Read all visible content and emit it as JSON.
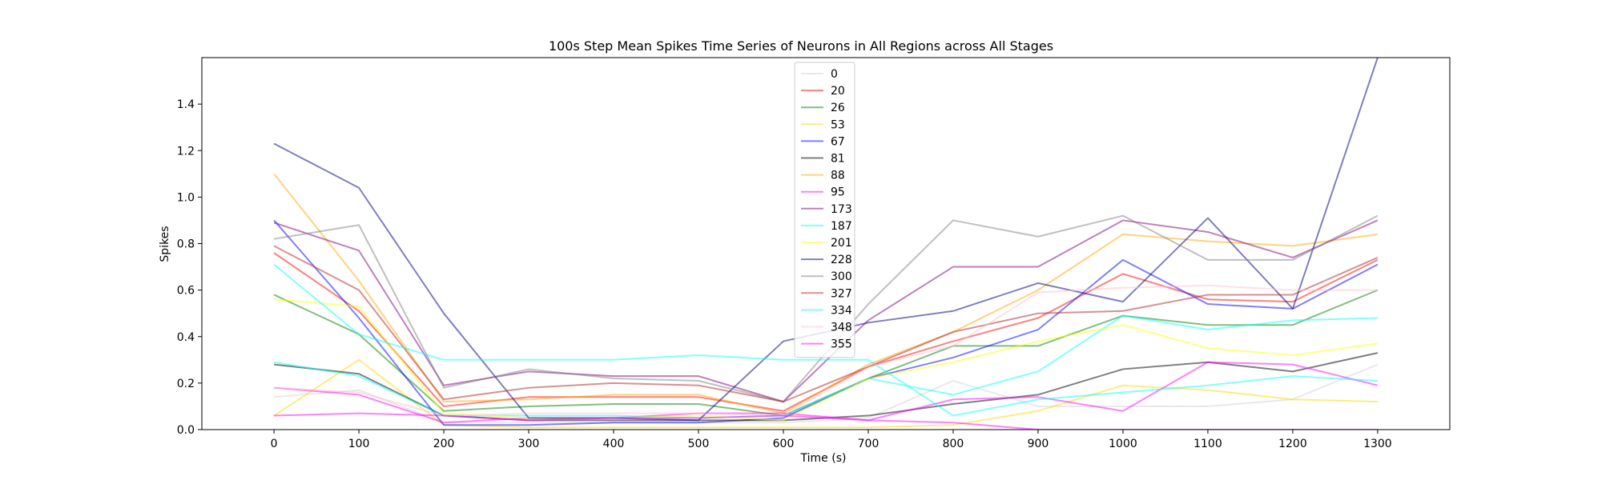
{
  "chart_data": {
    "type": "line",
    "title": "100s Step Mean Spikes Time Series of Neurons in All Regions across All Stages",
    "xlabel": "Time (s)",
    "ylabel": "Spikes",
    "xlim": [
      -85,
      1385
    ],
    "ylim": [
      0,
      1.6
    ],
    "x": [
      0,
      100,
      200,
      300,
      400,
      500,
      600,
      700,
      800,
      900,
      1000,
      1100,
      1200,
      1300
    ],
    "xticks": [
      "0",
      "100",
      "200",
      "300",
      "400",
      "500",
      "600",
      "700",
      "800",
      "900",
      "1000",
      "1100",
      "1200",
      "1300"
    ],
    "yticks": [
      "0.0",
      "0.2",
      "0.4",
      "0.6",
      "0.8",
      "1.0",
      "1.2",
      "1.4"
    ],
    "ytick_values": [
      0,
      0.2,
      0.4,
      0.6,
      0.8,
      1.0,
      1.2,
      1.4
    ],
    "grid": false,
    "legend_placement": "upper center",
    "series": [
      {
        "name": "0",
        "color": "#d3d3d3",
        "values": [
          0.14,
          0.17,
          0.03,
          0.03,
          0.03,
          0.03,
          0.03,
          0.05,
          0.21,
          0.1,
          0.1,
          0.1,
          0.13,
          0.28
        ]
      },
      {
        "name": "20",
        "color": "#ff0000",
        "values": [
          0.76,
          0.51,
          0.1,
          0.14,
          0.14,
          0.14,
          0.08,
          0.27,
          0.38,
          0.48,
          0.67,
          0.56,
          0.55,
          0.73
        ]
      },
      {
        "name": "26",
        "color": "#008000",
        "values": [
          0.58,
          0.41,
          0.08,
          0.1,
          0.11,
          0.11,
          0.06,
          0.22,
          0.36,
          0.36,
          0.49,
          0.45,
          0.45,
          0.6
        ]
      },
      {
        "name": "53",
        "color": "#ffd700",
        "values": [
          0.06,
          0.3,
          0.02,
          0.01,
          0.01,
          0.01,
          0.01,
          0.01,
          0.02,
          0.08,
          0.19,
          0.17,
          0.13,
          0.12
        ]
      },
      {
        "name": "67",
        "color": "#0000ff",
        "values": [
          0.9,
          0.48,
          0.02,
          0.02,
          0.03,
          0.03,
          0.05,
          0.22,
          0.31,
          0.43,
          0.73,
          0.54,
          0.52,
          0.71
        ]
      },
      {
        "name": "81",
        "color": "#000000",
        "values": [
          0.28,
          0.24,
          0.06,
          0.04,
          0.04,
          0.04,
          0.04,
          0.06,
          0.11,
          0.15,
          0.26,
          0.29,
          0.25,
          0.33
        ]
      },
      {
        "name": "88",
        "color": "#ffa500",
        "values": [
          1.1,
          0.64,
          0.12,
          0.13,
          0.15,
          0.15,
          0.07,
          0.28,
          0.42,
          0.6,
          0.84,
          0.81,
          0.79,
          0.84
        ]
      },
      {
        "name": "95",
        "color": "#ff00ff",
        "values": [
          0.18,
          0.15,
          0.03,
          0.05,
          0.05,
          0.07,
          0.07,
          0.04,
          0.13,
          0.14,
          0.08,
          0.29,
          0.28,
          0.19
        ]
      },
      {
        "name": "173",
        "color": "#800080",
        "values": [
          0.89,
          0.77,
          0.19,
          0.25,
          0.23,
          0.23,
          0.12,
          0.47,
          0.7,
          0.7,
          0.9,
          0.85,
          0.74,
          0.9
        ]
      },
      {
        "name": "187",
        "color": "#00ffff",
        "values": [
          0.29,
          0.23,
          0.06,
          0.06,
          0.06,
          0.05,
          0.06,
          0.22,
          0.15,
          0.25,
          0.49,
          0.43,
          0.47,
          0.48
        ]
      },
      {
        "name": "201",
        "color": "#ffff00",
        "values": [
          0.56,
          0.53,
          0.07,
          0.05,
          0.05,
          0.06,
          0.04,
          0.22,
          0.29,
          0.38,
          0.45,
          0.35,
          0.32,
          0.37
        ]
      },
      {
        "name": "228",
        "color": "#000080",
        "values": [
          1.23,
          1.04,
          0.5,
          0.05,
          0.05,
          0.04,
          0.38,
          0.46,
          0.51,
          0.63,
          0.55,
          0.91,
          0.52,
          1.6
        ]
      },
      {
        "name": "300",
        "color": "#808080",
        "values": [
          0.82,
          0.88,
          0.18,
          0.26,
          0.22,
          0.21,
          0.12,
          0.54,
          0.9,
          0.83,
          0.92,
          0.73,
          0.73,
          0.92
        ]
      },
      {
        "name": "327",
        "color": "#b22222",
        "values": [
          0.79,
          0.6,
          0.13,
          0.18,
          0.2,
          0.19,
          0.12,
          0.27,
          0.42,
          0.5,
          0.51,
          0.58,
          0.58,
          0.74
        ]
      },
      {
        "name": "334",
        "color": "#00ffff",
        "values": [
          0.71,
          0.41,
          0.3,
          0.3,
          0.3,
          0.32,
          0.3,
          0.3,
          0.06,
          0.13,
          0.16,
          0.19,
          0.23,
          0.21
        ]
      },
      {
        "name": "348",
        "color": "#ffc0cb",
        "values": [
          0.18,
          0.16,
          0.06,
          0.07,
          0.07,
          0.07,
          0.06,
          0.27,
          0.36,
          0.59,
          0.61,
          0.62,
          0.6,
          0.6
        ]
      },
      {
        "name": "355",
        "color": "#ff00ff",
        "values": [
          0.06,
          0.07,
          0.06,
          0.04,
          0.05,
          0.05,
          0.06,
          0.04,
          0.03,
          0.0,
          0.0,
          0.0,
          0.0,
          0.0
        ]
      }
    ]
  }
}
